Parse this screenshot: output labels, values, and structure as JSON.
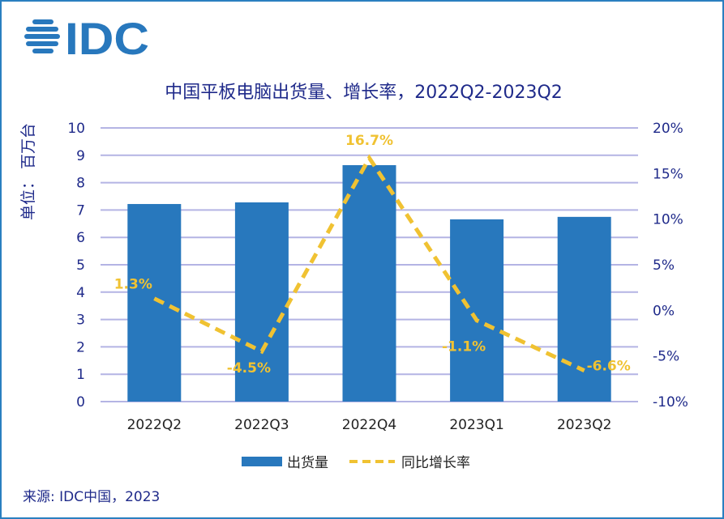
{
  "logo": "IDC",
  "colors": {
    "bar": "#2878bd",
    "line": "#f0c232",
    "grid": "#b4b4e4",
    "text": "#1f2a8a"
  },
  "chart_data": {
    "type": "bar+line",
    "title": "中国平板电脑出货量、增长率，2022Q2-2023Q2",
    "categories": [
      "2022Q2",
      "2022Q3",
      "2022Q4",
      "2023Q1",
      "2023Q2"
    ],
    "series": [
      {
        "name": "出货量",
        "type": "bar",
        "axis": "left",
        "values": [
          7.22,
          7.28,
          8.64,
          6.66,
          6.75
        ]
      },
      {
        "name": "同比增长率",
        "type": "line",
        "axis": "right",
        "values": [
          1.3,
          -4.5,
          16.7,
          -1.1,
          -6.6
        ],
        "labels": [
          "1.3%",
          "-4.5%",
          "16.7%",
          "-1.1%",
          "-6.6%"
        ]
      }
    ],
    "ylabel": "单位： 百万台",
    "ylim": [
      0,
      10
    ],
    "yticks": [
      "0",
      "1",
      "2",
      "3",
      "4",
      "5",
      "6",
      "7",
      "8",
      "9",
      "10"
    ],
    "y2lim": [
      -10,
      20
    ],
    "y2ticks": [
      "-10%",
      "-5%",
      "0%",
      "5%",
      "10%",
      "15%",
      "20%"
    ],
    "grid": true,
    "legend": "bottom"
  },
  "source": "来源: IDC中国，2023"
}
